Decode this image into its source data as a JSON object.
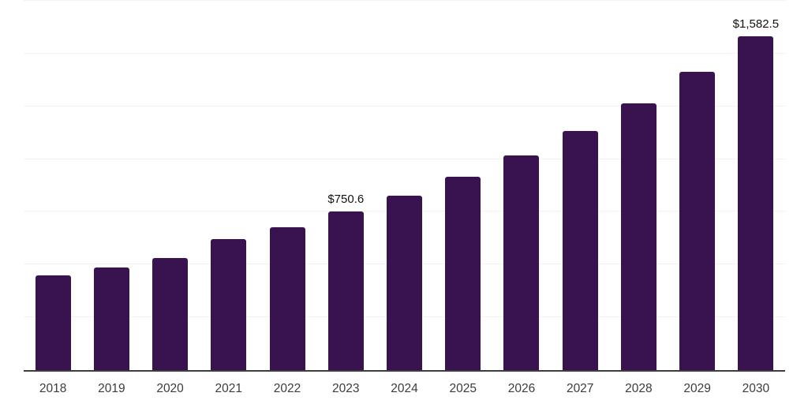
{
  "chart_data": {
    "type": "bar",
    "title": "",
    "xlabel": "",
    "ylabel": "",
    "categories": [
      "2018",
      "2019",
      "2020",
      "2021",
      "2022",
      "2023",
      "2024",
      "2025",
      "2026",
      "2027",
      "2028",
      "2029",
      "2030"
    ],
    "values": [
      448,
      485,
      531,
      620,
      678,
      750.6,
      826,
      917,
      1016,
      1133,
      1264,
      1415,
      1582.5
    ],
    "value_labels": [
      "",
      "",
      "",
      "",
      "",
      "$750.6",
      "",
      "",
      "",
      "",
      "",
      "",
      "$1,582.5"
    ],
    "ylim": [
      0,
      1750
    ],
    "gridline_step": 250,
    "grid": true,
    "legend": false,
    "colors": {
      "bar": "#38134f",
      "gridline": "#f2f2f2",
      "axis_line": "#3d3d3d",
      "tick_label": "#3c3c3c",
      "value_label": "#111111",
      "background": "#ffffff"
    }
  }
}
